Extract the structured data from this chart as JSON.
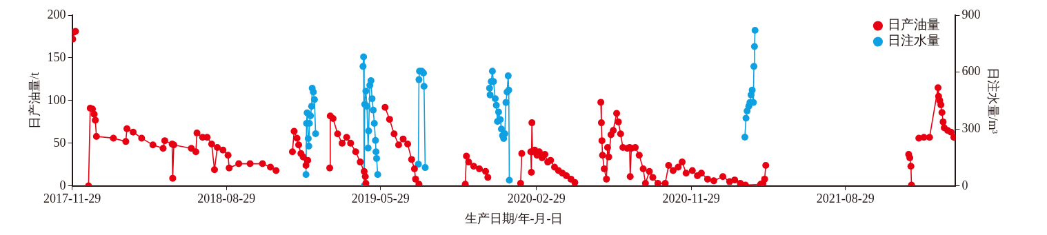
{
  "chart_data": {
    "type": "line",
    "xlabel": "生产日期/年-月-日",
    "ylabel": "日产油量/t",
    "y2label": "日注水量/m³",
    "xlim": [
      "2017-11-29",
      "2022-03-12"
    ],
    "xticks": [
      "2017-11-29",
      "2018-08-29",
      "2019-05-29",
      "2020-02-29",
      "2020-11-29",
      "2021-08-29"
    ],
    "ylim": [
      0,
      200
    ],
    "yticks": [
      0,
      50,
      100,
      150,
      200
    ],
    "y2lim": [
      0,
      900
    ],
    "y2ticks": [
      0,
      300,
      600,
      900
    ],
    "legend": "top right",
    "marker": "circle",
    "line_style": "solid",
    "series": [
      {
        "name": "日产油量",
        "color": "#e60012",
        "x": [
          "2017-11-30",
          "2017-12-02",
          "2017-12-05",
          "2017-12-16",
          "2017-12-28",
          "2017-12-31",
          "2018-01-04",
          "2018-01-07",
          "2018-01-09",
          "2018-01-11",
          "2018-02-10",
          "2018-03-04",
          "2018-03-06",
          "2018-03-17",
          "2018-04-01",
          "2018-04-21",
          "2018-05-09",
          "2018-05-12",
          "2018-05-25",
          "2018-05-26",
          "2018-05-28",
          "2018-06-28",
          "2018-07-06",
          "2018-07-08",
          "2018-07-18",
          "2018-07-26",
          "2018-08-03",
          "2018-08-08",
          "2018-08-13",
          "2018-08-23",
          "2018-09-01",
          "2018-09-03",
          "2018-09-20",
          "2018-10-10",
          "2018-11-01",
          "2018-11-15",
          "2018-11-25",
          "2018-12-10",
          "2018-12-24",
          "2018-12-27",
          "2019-01-01",
          "2019-01-04",
          "2019-01-08",
          "2019-01-12",
          "2019-01-17",
          "2019-01-20",
          "2019-02-10",
          "2019-02-28",
          "2019-03-01",
          "2019-03-06",
          "2019-03-14",
          "2019-03-22",
          "2019-03-30",
          "2019-04-06",
          "2019-04-15",
          "2019-04-23",
          "2019-04-30",
          "2019-05-02",
          "2019-05-03",
          "2019-05-20",
          "2019-06-06",
          "2019-06-14",
          "2019-06-22",
          "2019-06-30",
          "2019-07-08",
          "2019-07-16",
          "2019-07-23",
          "2019-07-28",
          "2019-07-30",
          "2019-08-05",
          "2019-09-15",
          "2019-10-26",
          "2019-10-28",
          "2019-11-01",
          "2019-11-10",
          "2019-11-20",
          "2019-12-01",
          "2019-12-05",
          "2020-01-10",
          "2020-02-01",
          "2020-02-03",
          "2020-02-10",
          "2020-02-19",
          "2020-02-20",
          "2020-02-21",
          "2020-02-22",
          "2020-02-26",
          "2020-03-01",
          "2020-03-05",
          "2020-03-10",
          "2020-03-15",
          "2020-03-20",
          "2020-03-25",
          "2020-04-01",
          "2020-04-08",
          "2020-04-15",
          "2020-04-22",
          "2020-04-30",
          "2020-05-07",
          "2020-06-01",
          "2020-06-22",
          "2020-06-23",
          "2020-06-24",
          "2020-06-25",
          "2020-06-28",
          "2020-07-02",
          "2020-07-04",
          "2020-07-06",
          "2020-07-10",
          "2020-07-14",
          "2020-07-20",
          "2020-07-23",
          "2020-07-27",
          "2020-07-31",
          "2020-08-08",
          "2020-08-12",
          "2020-08-13",
          "2020-08-15",
          "2020-08-22",
          "2020-08-29",
          "2020-09-05",
          "2020-09-09",
          "2020-09-16",
          "2020-09-22",
          "2020-10-01",
          "2020-10-14",
          "2020-10-20",
          "2020-10-28",
          "2020-11-06",
          "2020-11-13",
          "2020-11-20",
          "2020-12-01",
          "2020-12-10",
          "2020-12-17",
          "2020-12-28",
          "2021-01-08",
          "2021-01-24",
          "2021-02-05",
          "2021-02-14",
          "2021-02-24",
          "2021-03-05",
          "2021-04-01",
          "2021-04-05",
          "2021-04-08",
          "2021-04-10",
          "2021-08-01",
          "2021-12-19",
          "2021-12-21",
          "2021-12-23",
          "2021-12-24",
          "2021-12-30",
          "2022-01-06",
          "2022-01-15",
          "2022-01-25",
          "2022-02-09",
          "2022-02-10",
          "2022-02-12",
          "2022-02-14",
          "2022-02-16",
          "2022-02-18",
          "2022-02-20",
          "2022-02-26",
          "2022-03-04",
          "2022-03-09"
        ],
        "values": [
          172,
          180,
          181,
          null,
          0,
          91,
          90,
          84,
          77,
          58,
          56,
          52,
          67,
          63,
          56,
          48,
          44,
          53,
          49,
          9,
          48,
          44,
          40,
          62,
          57,
          57,
          49,
          19,
          45,
          42,
          36,
          21,
          26,
          26,
          26,
          22,
          18,
          null,
          40,
          64,
          56,
          48,
          38,
          34,
          24,
          30,
          null,
          21,
          82,
          79,
          61,
          50,
          57,
          50,
          40,
          28,
          17,
          11,
          3,
          null,
          92,
          78,
          61,
          48,
          55,
          49,
          31,
          20,
          8,
          2,
          null,
          2,
          35,
          28,
          23,
          20,
          17,
          10,
          null,
          3,
          38,
          null,
          40,
          16,
          74,
          40,
          42,
          36,
          40,
          33,
          37,
          28,
          30,
          22,
          18,
          15,
          12,
          8,
          4,
          null,
          98,
          74,
          53,
          36,
          20,
          8,
          45,
          34,
          60,
          65,
          85,
          75,
          61,
          45,
          44,
          45,
          11,
          44,
          45,
          36,
          20,
          3,
          17,
          10,
          3,
          3,
          24,
          18,
          22,
          28,
          15,
          18,
          12,
          15,
          8,
          6,
          11,
          5,
          7,
          3,
          1,
          2,
          3,
          8,
          24,
          null,
          37,
          33,
          23,
          1,
          null,
          56,
          57,
          57,
          115,
          105,
          100,
          95,
          86,
          75,
          68,
          65,
          63,
          57
        ]
      },
      {
        "name": "日注水量",
        "color": "#0ea0e0",
        "axis": "y2",
        "x": [
          "2019-01-17",
          "2019-01-18",
          "2019-01-19",
          "2019-01-21",
          "2019-01-22",
          "2019-01-23",
          "2019-01-25",
          "2019-01-27",
          "2019-01-28",
          "2019-01-30",
          "2019-02-01",
          "2019-02-03",
          "2019-03-15",
          "2019-04-28",
          "2019-04-29",
          "2019-04-30",
          "2019-05-01",
          "2019-05-03",
          "2019-05-05",
          "2019-05-07",
          "2019-05-08",
          "2019-05-10",
          "2019-05-12",
          "2019-05-14",
          "2019-05-16",
          "2019-05-18",
          "2019-05-20",
          "2019-05-21",
          "2019-05-22",
          "2019-05-24",
          "2019-07-01",
          "2019-08-04",
          "2019-08-05",
          "2019-08-06",
          "2019-08-10",
          "2019-08-13",
          "2019-08-14",
          "2019-08-16",
          "2019-10-15",
          "2019-12-08",
          "2019-12-09",
          "2019-12-11",
          "2019-12-13",
          "2019-12-15",
          "2019-12-18",
          "2019-12-20",
          "2019-12-22",
          "2019-12-24",
          "2019-12-27",
          "2019-12-29",
          "2019-12-31",
          "2020-01-02",
          "2020-01-04",
          "2020-01-06",
          "2020-01-08",
          "2020-01-10",
          "2020-01-11",
          "2020-01-12",
          "2020-06-01",
          "2021-03-04",
          "2021-03-06",
          "2021-03-08",
          "2021-03-11",
          "2021-03-13",
          "2021-03-15",
          "2021-03-17",
          "2021-03-19",
          "2021-03-20",
          "2021-03-21",
          "2021-03-22"
        ],
        "values": [
          60,
          330,
          385,
          250,
          210,
          330,
          370,
          420,
          515,
          495,
          455,
          275,
          null,
          630,
          680,
          0,
          430,
          500,
          420,
          200,
          290,
          530,
          555,
          460,
          400,
          330,
          240,
          180,
          145,
          60,
          null,
          115,
          560,
          605,
          605,
          595,
          525,
          97,
          null,
          515,
          480,
          550,
          605,
          550,
          460,
          425,
          340,
          390,
          350,
          300,
          265,
          250,
          275,
          440,
          495,
          580,
          505,
          30,
          null,
          257,
          357,
          395,
          420,
          440,
          480,
          505,
          440,
          630,
          735,
          820
        ]
      }
    ]
  }
}
